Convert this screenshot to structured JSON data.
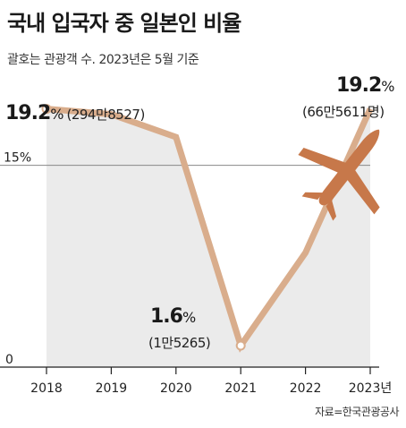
{
  "title": "국내 입국자 중 일본인 비율",
  "subtitle": "괄호는 관광객 수. 2023년은 5월 기준",
  "source": "자료=한국관광공사",
  "colors": {
    "line": "#d9ad8c",
    "area": "#ebebeb",
    "plane": "#c7784a",
    "grid": "#888888"
  },
  "icon": "airplane-icon",
  "chart_data": {
    "type": "area",
    "categories": [
      "2018",
      "2019",
      "2020",
      "2021",
      "2022",
      "2023년"
    ],
    "values": [
      19.2,
      18.8,
      17.1,
      1.6,
      8.5,
      19.2
    ],
    "ylim": [
      0,
      22.5
    ],
    "ytick_labels": [
      "15%",
      "0"
    ],
    "yticks": [
      15,
      0
    ],
    "annotations": [
      {
        "value": "19.2",
        "unit": "%",
        "detail": "(294만8527)"
      },
      {
        "value": "1.6",
        "unit": "%",
        "detail": "(1만5265)"
      },
      {
        "value": "19.2",
        "unit": "%",
        "detail": "(66만5611명)"
      }
    ]
  }
}
